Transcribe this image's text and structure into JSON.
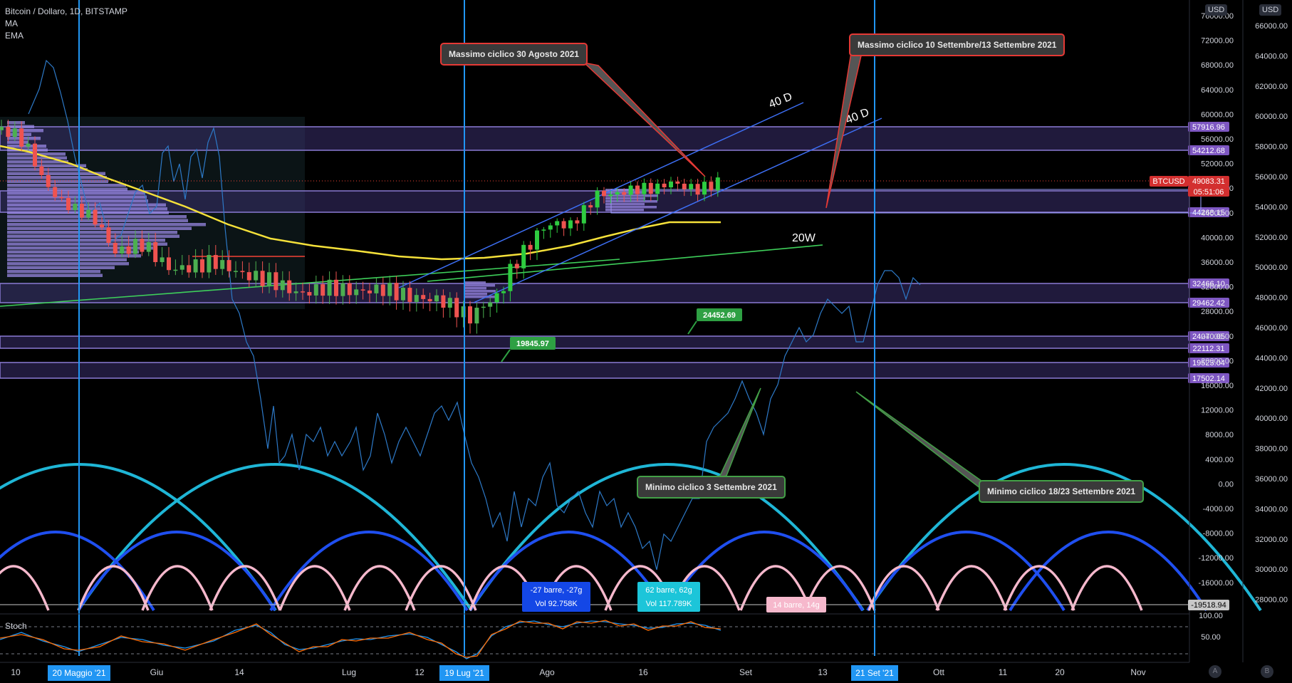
{
  "header": {
    "title": "Bitcoin / Dollaro, 1D, BITSTAMP",
    "indicator_ma": "MA",
    "indicator_ema": "EMA",
    "stoch_label": "Stoch"
  },
  "currency": "USD",
  "bottom_buttons": [
    "A",
    "B"
  ],
  "callouts": [
    {
      "text": "Massimo ciclico 30 Agosto 2021"
    },
    {
      "text": "Massimo ciclico 10 Settembre/13 Settembre 2021"
    },
    {
      "text": "Minimo ciclico 3 Settembre 2021"
    },
    {
      "text": "Minimo ciclico 18/23 Settembre 2021"
    }
  ],
  "colors": {
    "up": "#26a69a",
    "down": "#ef5350",
    "green_candle": "#4caf50",
    "ema_yellow": "#f5e13a",
    "ma_green": "#3ecf5a",
    "channel": "#3d6ff5",
    "vline": "#2196f3",
    "zone_fill": "#3b2f6e",
    "zone_edge": "#8a7ad4",
    "cycle_cyan": "#1fb6d6",
    "cycle_blue": "#1f4ff0",
    "cycle_pink": "#f6b8cc",
    "osc_line": "#2d79c7",
    "stoch_k": "#2196f3",
    "stoch_d": "#ff6d00"
  },
  "chart_data": [
    {
      "type": "candlestick",
      "title": "Bitcoin / Dollaro, 1D, BITSTAMP",
      "ylim": [
        20000,
        78000
      ],
      "right_axis_ticks": [
        76000,
        72000,
        68000,
        64000,
        60000,
        56000,
        52000,
        48000,
        44000,
        40000,
        36000,
        32000,
        28000,
        24000,
        20000,
        16000,
        12000,
        8000,
        4000,
        0,
        -4000,
        -8000,
        -12000,
        -16000
      ],
      "left_axis_ticks": [
        66000,
        64000,
        62000,
        60000,
        58000,
        56000,
        54000,
        52000,
        50000,
        48000,
        46000,
        44000,
        42000,
        40000,
        38000,
        36000,
        34000,
        32000,
        30000,
        28000
      ],
      "x_ticks": [
        "10",
        "Giu",
        "14",
        "Lug",
        "12",
        "Ago",
        "16",
        "Set",
        "13",
        "Ott",
        "11",
        "20",
        "Nov"
      ],
      "x_highlight_labels": [
        "20 Maggio '21",
        "19 Lug '21",
        "21 Set '21"
      ],
      "last_price": {
        "label": "BTCUSD",
        "value": "49083.31",
        "countdown": "05:51:06"
      },
      "zones": [
        {
          "top": 57916.96,
          "bottom": 54212.68
        },
        {
          "top": 47567.17,
          "bottom": 44268.15
        },
        {
          "top": 32466.1,
          "bottom": 29462.42
        },
        {
          "top": 24070.05,
          "bottom": 22112.31
        },
        {
          "top": 19523.04,
          "bottom": 17502.14
        }
      ],
      "labels": {
        "channel_top": "40 D",
        "channel_bottom": "40 D",
        "ma20w": "20W",
        "green_tag_1": "24452.69",
        "green_tag_2": "19845.97",
        "osc_last": "-19518.94"
      },
      "measure_boxes": [
        {
          "line1": "-27 barre, -27g",
          "line2": "Vol 92.758K"
        },
        {
          "line1": "62 barre, 62g",
          "line2": "Vol 117.789K"
        },
        {
          "line1": "14 barre, 14g",
          "line2": ""
        }
      ]
    },
    {
      "type": "line",
      "title": "Stoch",
      "ylim": [
        0,
        100
      ],
      "ticks": [
        100,
        50
      ]
    }
  ]
}
